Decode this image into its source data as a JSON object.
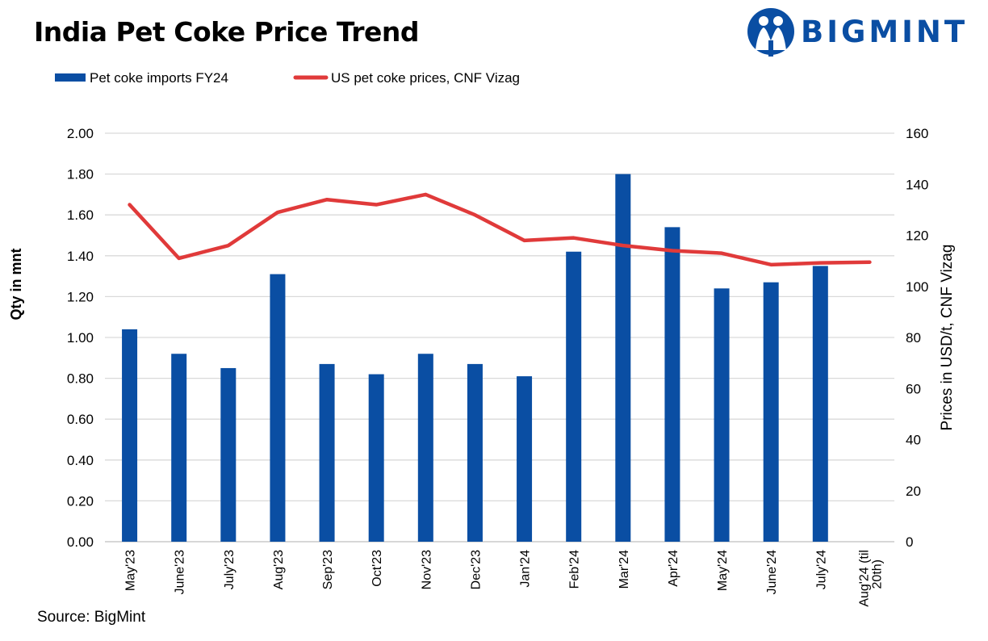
{
  "page": {
    "title": "India Pet Coke Price Trend",
    "source": "Source: BigMint",
    "logo_text": "BIGMINT",
    "brand_color": "#0a4ea3"
  },
  "chart_data": {
    "type": "bar",
    "categories": [
      "May'23",
      "June'23",
      "July'23",
      "Aug'23",
      "Sep'23",
      "Oct'23",
      "Nov'23",
      "Dec'23",
      "Jan'24",
      "Feb'24",
      "Mar'24",
      "Apr'24",
      "May'24",
      "June'24",
      "July'24",
      "Aug'24 (till 20th)"
    ],
    "series": [
      {
        "name": "Pet coke imports FY24",
        "type": "bar",
        "axis": "left",
        "color": "#0a4ea3",
        "values": [
          1.04,
          0.92,
          0.85,
          1.31,
          0.87,
          0.82,
          0.92,
          0.87,
          0.81,
          1.42,
          1.8,
          1.54,
          1.24,
          1.27,
          1.35,
          null
        ]
      },
      {
        "name": "US pet coke prices, CNF Vizag",
        "type": "line",
        "axis": "right",
        "color": "#e03a3a",
        "values": [
          132,
          111,
          116,
          129,
          134,
          132,
          136,
          128,
          118,
          119,
          116,
          114,
          113,
          108.5,
          109.2,
          109.5
        ]
      }
    ],
    "ylabel": "Qty in mnt",
    "ylim": [
      0,
      2
    ],
    "yticks": [
      "0.00",
      "0.20",
      "0.40",
      "0.60",
      "0.80",
      "1.00",
      "1.20",
      "1.40",
      "1.60",
      "1.80",
      "2.00"
    ],
    "y2label": "Prices in USD/t, CNF Vizag",
    "y2lim": [
      0,
      160
    ],
    "y2ticks": [
      "0",
      "20",
      "40",
      "60",
      "80",
      "100",
      "120",
      "140",
      "160"
    ],
    "grid": true,
    "legend": "top-left"
  }
}
